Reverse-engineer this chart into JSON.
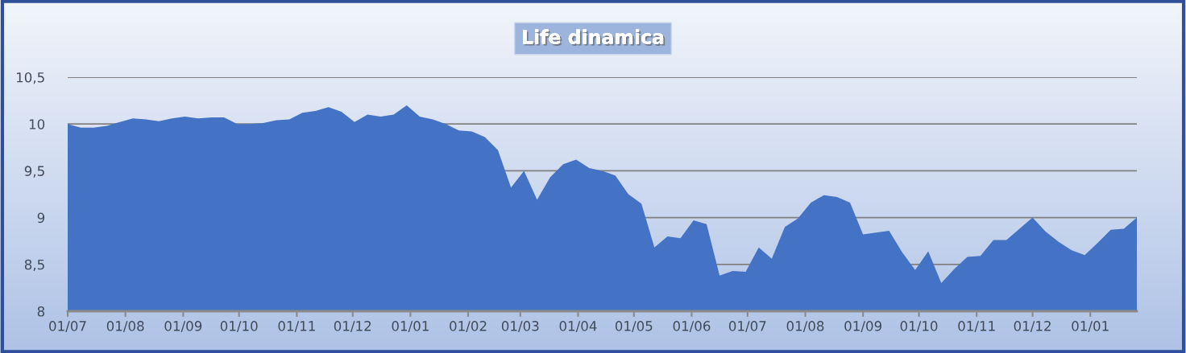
{
  "chart_data": {
    "type": "area",
    "title": "Life dinamica",
    "x": [
      "2001-07-01",
      "2001-07-08",
      "2001-07-15",
      "2001-07-22",
      "2001-07-29",
      "2001-08-05",
      "2001-08-12",
      "2001-08-19",
      "2001-08-26",
      "2001-09-02",
      "2001-09-09",
      "2001-09-16",
      "2001-09-23",
      "2001-09-30",
      "2001-10-07",
      "2001-10-14",
      "2001-10-21",
      "2001-10-28",
      "2001-11-04",
      "2001-11-11",
      "2001-11-18",
      "2001-11-25",
      "2001-12-02",
      "2001-12-09",
      "2001-12-16",
      "2001-12-23",
      "2001-12-30",
      "2002-01-06",
      "2002-01-13",
      "2002-01-20",
      "2002-01-27",
      "2002-02-03",
      "2002-02-10",
      "2002-02-17",
      "2002-02-24",
      "2002-03-03",
      "2002-03-10",
      "2002-03-17",
      "2002-03-24",
      "2002-03-31",
      "2002-04-07",
      "2002-04-14",
      "2002-04-21",
      "2002-04-28",
      "2002-05-05",
      "2002-05-12",
      "2002-05-19",
      "2002-05-26",
      "2002-06-02",
      "2002-06-09",
      "2002-06-16",
      "2002-06-23",
      "2002-06-30",
      "2002-07-07",
      "2002-07-14",
      "2002-07-21",
      "2002-07-28",
      "2002-08-04",
      "2002-08-11",
      "2002-08-18",
      "2002-08-25",
      "2002-09-01",
      "2002-09-08",
      "2002-09-15",
      "2002-09-22",
      "2002-09-29",
      "2002-10-06",
      "2002-10-13",
      "2002-10-20",
      "2002-10-27",
      "2002-11-03",
      "2002-11-10",
      "2002-11-17",
      "2002-11-24",
      "2002-12-01",
      "2002-12-08",
      "2002-12-15",
      "2002-12-22",
      "2002-12-29",
      "2003-01-05",
      "2003-01-12",
      "2003-01-19",
      "2003-01-26"
    ],
    "series": [
      {
        "color": "#4472c4",
        "values": [
          10.0,
          9.96,
          9.96,
          9.98,
          10.02,
          10.06,
          10.05,
          10.03,
          10.06,
          10.08,
          10.06,
          10.07,
          10.07,
          10.0,
          10.0,
          10.01,
          10.04,
          10.05,
          10.12,
          10.14,
          10.18,
          10.13,
          10.02,
          10.1,
          10.08,
          10.1,
          10.2,
          10.08,
          10.05,
          10.0,
          9.93,
          9.92,
          9.86,
          9.72,
          9.32,
          9.5,
          9.19,
          9.43,
          9.57,
          9.62,
          9.53,
          9.5,
          9.45,
          9.25,
          9.15,
          8.68,
          8.8,
          8.78,
          8.97,
          8.93,
          8.38,
          8.43,
          8.42,
          8.68,
          8.56,
          8.9,
          8.99,
          9.16,
          9.24,
          9.22,
          9.16,
          8.82,
          8.84,
          8.86,
          8.63,
          8.44,
          8.64,
          8.3,
          8.45,
          8.58,
          8.59,
          8.76,
          8.76,
          8.88,
          9.0,
          8.85,
          8.74,
          8.65,
          8.6,
          8.73,
          8.87,
          8.88,
          9.0
        ]
      }
    ],
    "xlim": [
      "2001-07-01",
      "2003-01-26"
    ],
    "xticks": [
      {
        "value": "2001-07-01",
        "label": "01/07"
      },
      {
        "value": "2001-08-01",
        "label": "01/08"
      },
      {
        "value": "2001-09-01",
        "label": "01/09"
      },
      {
        "value": "2001-10-01",
        "label": "01/10"
      },
      {
        "value": "2001-11-01",
        "label": "01/11"
      },
      {
        "value": "2001-12-01",
        "label": "01/12"
      },
      {
        "value": "2002-01-01",
        "label": "01/01"
      },
      {
        "value": "2002-02-01",
        "label": "01/02"
      },
      {
        "value": "2002-03-01",
        "label": "01/03"
      },
      {
        "value": "2002-04-01",
        "label": "01/04"
      },
      {
        "value": "2002-05-01",
        "label": "01/05"
      },
      {
        "value": "2002-06-01",
        "label": "01/06"
      },
      {
        "value": "2002-07-01",
        "label": "01/07"
      },
      {
        "value": "2002-08-01",
        "label": "01/08"
      },
      {
        "value": "2002-09-01",
        "label": "01/09"
      },
      {
        "value": "2002-10-01",
        "label": "01/10"
      },
      {
        "value": "2002-11-01",
        "label": "01/11"
      },
      {
        "value": "2002-12-01",
        "label": "01/12"
      },
      {
        "value": "2003-01-01",
        "label": "01/01"
      }
    ],
    "ylim": [
      8,
      10.5
    ],
    "yticks": [
      {
        "value": 8,
        "label": "8"
      },
      {
        "value": 8.5,
        "label": "8,5"
      },
      {
        "value": 9,
        "label": "9"
      },
      {
        "value": 9.5,
        "label": "9,5"
      },
      {
        "value": 10,
        "label": "10"
      },
      {
        "value": 10.5,
        "label": "10,5"
      }
    ],
    "grid": "y"
  }
}
